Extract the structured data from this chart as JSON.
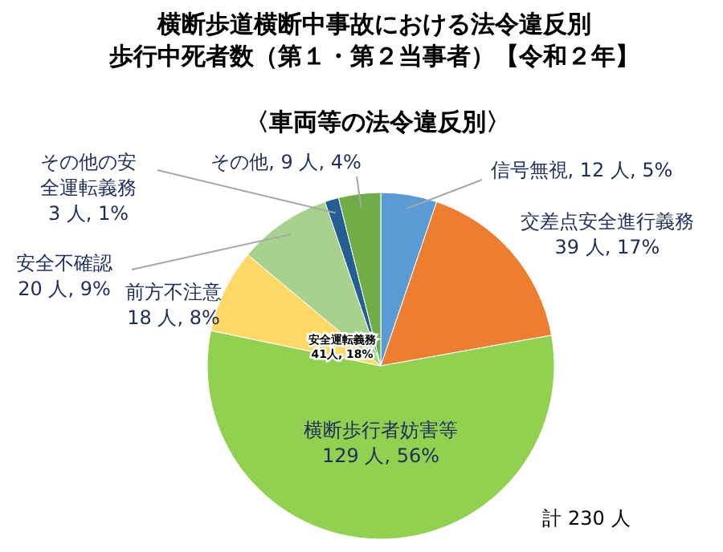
{
  "chart_data": {
    "type": "pie",
    "title": "横断歩道横断中事故における法令違反別歩行中死者数（第１・第２当事者）【令和２年】",
    "subtitle": "〈車両等の法令違反別〉",
    "categories": [
      "信号無視",
      "交差点安全進行義務",
      "横断歩行者妨害等",
      "前方不注意",
      "安全不確認",
      "その他の安全運転義務",
      "その他"
    ],
    "values": [
      12,
      39,
      129,
      18,
      20,
      3,
      9
    ],
    "value_labels": [
      "12 人, 5%",
      "39 人, 17%",
      "129 人, 56%",
      "18 人, 8%",
      "20 人, 9%",
      "3 人, 1%",
      "9 人, 4%"
    ],
    "colors": [
      "#5b9bd5",
      "#ed7d31",
      "#92d050",
      "#ffd966",
      "#a9d18e",
      "#255e91",
      "#70ad47"
    ],
    "annotations": [
      "安全運転義務\n41人, 18%",
      "計 230 人"
    ],
    "legend": false
  }
}
